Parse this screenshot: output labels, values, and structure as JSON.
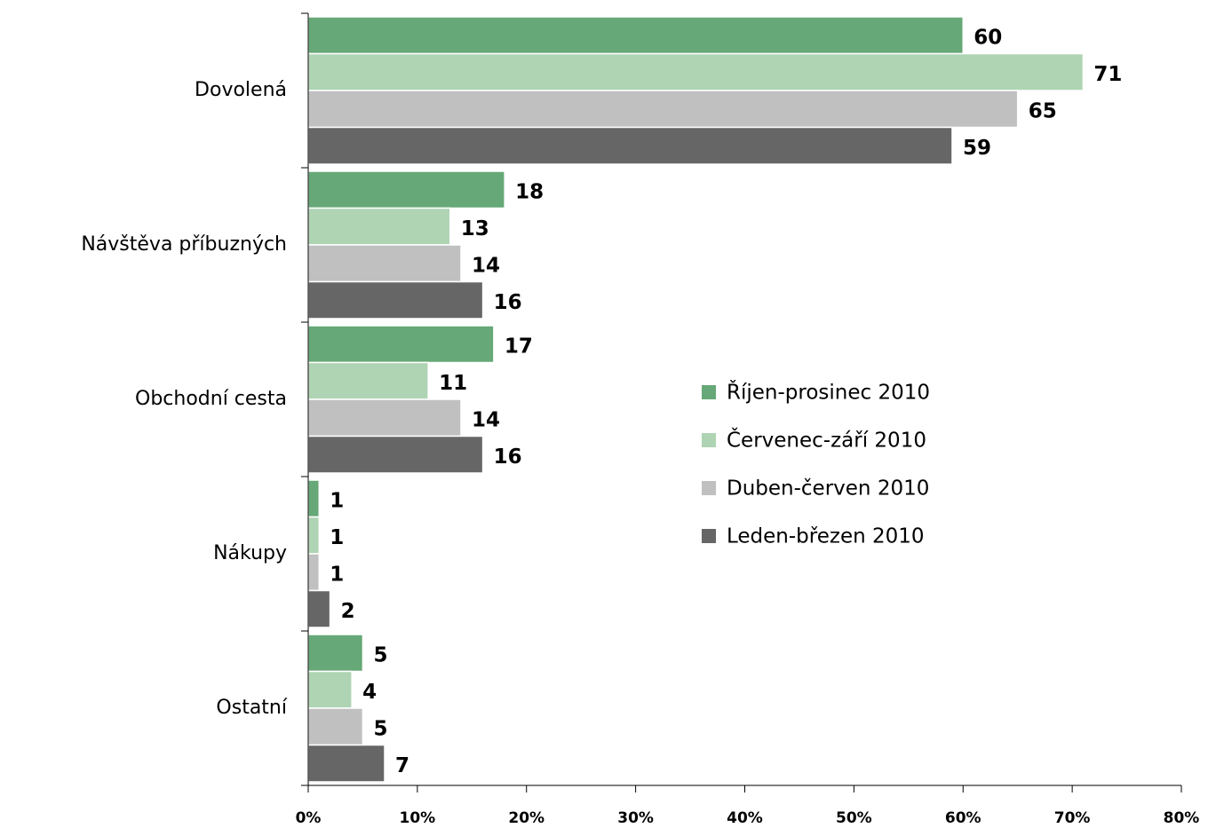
{
  "chart_data": {
    "type": "hbar",
    "categories": [
      "Dovolená",
      "Návštěva příbuzných",
      "Obchodní cesta",
      "Nákupy",
      "Ostatní"
    ],
    "series": [
      {
        "name": "Říjen-prosinec 2010",
        "color": "#66a877",
        "values": [
          60,
          18,
          17,
          1,
          5
        ]
      },
      {
        "name": "Červenec-září 2010",
        "color": "#aed4b3",
        "values": [
          71,
          13,
          11,
          1,
          4
        ]
      },
      {
        "name": "Duben-červen 2010",
        "color": "#c0c0c0",
        "values": [
          65,
          14,
          14,
          1,
          5
        ]
      },
      {
        "name": "Leden-březen 2010",
        "color": "#666666",
        "values": [
          59,
          16,
          16,
          2,
          7
        ]
      }
    ],
    "xlim": [
      0,
      80
    ],
    "xticks": [
      {
        "value": 0,
        "label": "0%"
      },
      {
        "value": 10,
        "label": "10%"
      },
      {
        "value": 20,
        "label": "20%"
      },
      {
        "value": 30,
        "label": "30%"
      },
      {
        "value": 40,
        "label": "40%"
      },
      {
        "value": 50,
        "label": "50%"
      },
      {
        "value": 60,
        "label": "60%"
      },
      {
        "value": 70,
        "label": "70%"
      },
      {
        "value": 80,
        "label": "80%"
      }
    ],
    "legend": "right"
  }
}
